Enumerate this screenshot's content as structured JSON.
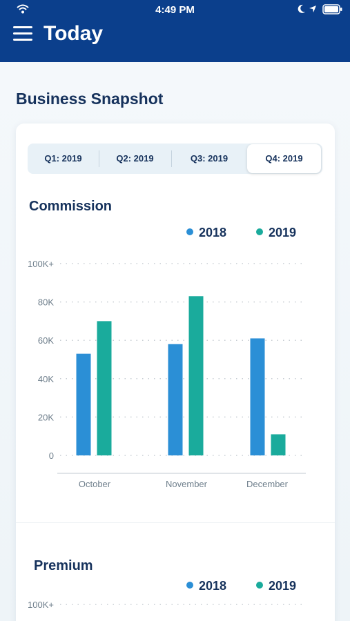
{
  "status_bar": {
    "time": "4:49 PM"
  },
  "header": {
    "title": "Today"
  },
  "section": {
    "title": "Business Snapshot"
  },
  "tabs": [
    {
      "label": "Q1: 2019",
      "active": false
    },
    {
      "label": "Q2: 2019",
      "active": false
    },
    {
      "label": "Q3:  2019",
      "active": false
    },
    {
      "label": "Q4: 2019",
      "active": true
    }
  ],
  "colors": {
    "navy": "#0b3f8c",
    "series_2018": "#2b8fd6",
    "series_2019": "#1aab9c"
  },
  "commission": {
    "title": "Commission"
  },
  "premium": {
    "title": "Premium"
  },
  "chart_data": [
    {
      "type": "bar",
      "title": "Commission",
      "categories": [
        "October",
        "November",
        "December"
      ],
      "series": [
        {
          "name": "2018",
          "values": [
            53,
            58,
            61
          ]
        },
        {
          "name": "2019",
          "values": [
            70,
            83,
            11
          ]
        }
      ],
      "y_ticks": [
        "0",
        "20K",
        "40K",
        "60K",
        "80K",
        "100K+"
      ],
      "ylim": [
        0,
        100
      ],
      "grid": true,
      "legend": "top-right"
    },
    {
      "type": "bar",
      "title": "Premium",
      "series": [
        {
          "name": "2018"
        },
        {
          "name": "2019"
        }
      ],
      "y_ticks": [
        "100K+"
      ],
      "legend": "top-right"
    }
  ]
}
